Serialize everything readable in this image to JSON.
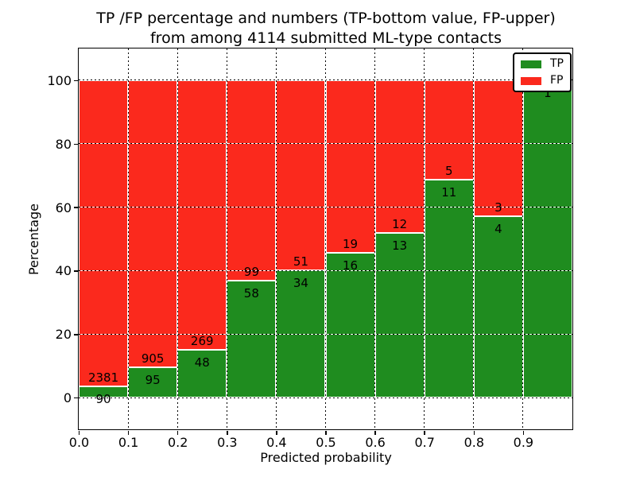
{
  "figure": {
    "title_line1": "TP /FP percentage and numbers (TP-bottom value, FP-upper)",
    "title_line2": "from among 4114 submitted ML-type contacts",
    "x_label": "Predicted probability",
    "y_label": "Percentage"
  },
  "legend": {
    "position": "upper-right",
    "items": [
      {
        "label": "TP",
        "color": "#1f8c1f"
      },
      {
        "label": "FP",
        "color": "#fb291d"
      }
    ]
  },
  "chart_data": {
    "type": "bar",
    "stacked": true,
    "title": "TP /FP percentage and numbers (TP-bottom value, FP-upper) from among 4114 submitted ML-type contacts",
    "xlabel": "Predicted probability",
    "ylabel": "Percentage",
    "total_contacts": 4114,
    "grid": true,
    "xlim": [
      0.0,
      1.0
    ],
    "ylim": [
      -10,
      110
    ],
    "bin_width": 0.1,
    "x_tick_labels": [
      "0.0",
      "0.1",
      "0.2",
      "0.3",
      "0.4",
      "0.5",
      "0.6",
      "0.7",
      "0.8",
      "0.9"
    ],
    "y_ticks": [
      0,
      20,
      40,
      60,
      80,
      100
    ],
    "y_tick_labels": [
      "0",
      "20",
      "40",
      "60",
      "80",
      "100"
    ],
    "series": [
      {
        "name": "TP",
        "color": "#1f8c1f",
        "counts": [
          90,
          95,
          48,
          58,
          34,
          16,
          13,
          11,
          4,
          1
        ]
      },
      {
        "name": "FP",
        "color": "#fb291d",
        "counts": [
          2381,
          905,
          269,
          99,
          51,
          19,
          12,
          5,
          3,
          0
        ]
      }
    ],
    "bins": [
      {
        "x_start": 0.0,
        "x_end": 0.1,
        "tp": 90,
        "fp": 2381,
        "tp_pct": 3.64
      },
      {
        "x_start": 0.1,
        "x_end": 0.2,
        "tp": 95,
        "fp": 905,
        "tp_pct": 9.5
      },
      {
        "x_start": 0.2,
        "x_end": 0.3,
        "tp": 48,
        "fp": 269,
        "tp_pct": 15.14
      },
      {
        "x_start": 0.3,
        "x_end": 0.4,
        "tp": 58,
        "fp": 99,
        "tp_pct": 36.94
      },
      {
        "x_start": 0.4,
        "x_end": 0.5,
        "tp": 34,
        "fp": 51,
        "tp_pct": 40.0
      },
      {
        "x_start": 0.5,
        "x_end": 0.6,
        "tp": 16,
        "fp": 19,
        "tp_pct": 45.71
      },
      {
        "x_start": 0.6,
        "x_end": 0.7,
        "tp": 13,
        "fp": 12,
        "tp_pct": 52.0
      },
      {
        "x_start": 0.7,
        "x_end": 0.8,
        "tp": 11,
        "fp": 5,
        "tp_pct": 68.75
      },
      {
        "x_start": 0.8,
        "x_end": 0.9,
        "tp": 4,
        "fp": 3,
        "tp_pct": 57.14
      },
      {
        "x_start": 0.9,
        "x_end": 1.0,
        "tp": 1,
        "fp": 0,
        "tp_pct": 100.0
      }
    ]
  }
}
